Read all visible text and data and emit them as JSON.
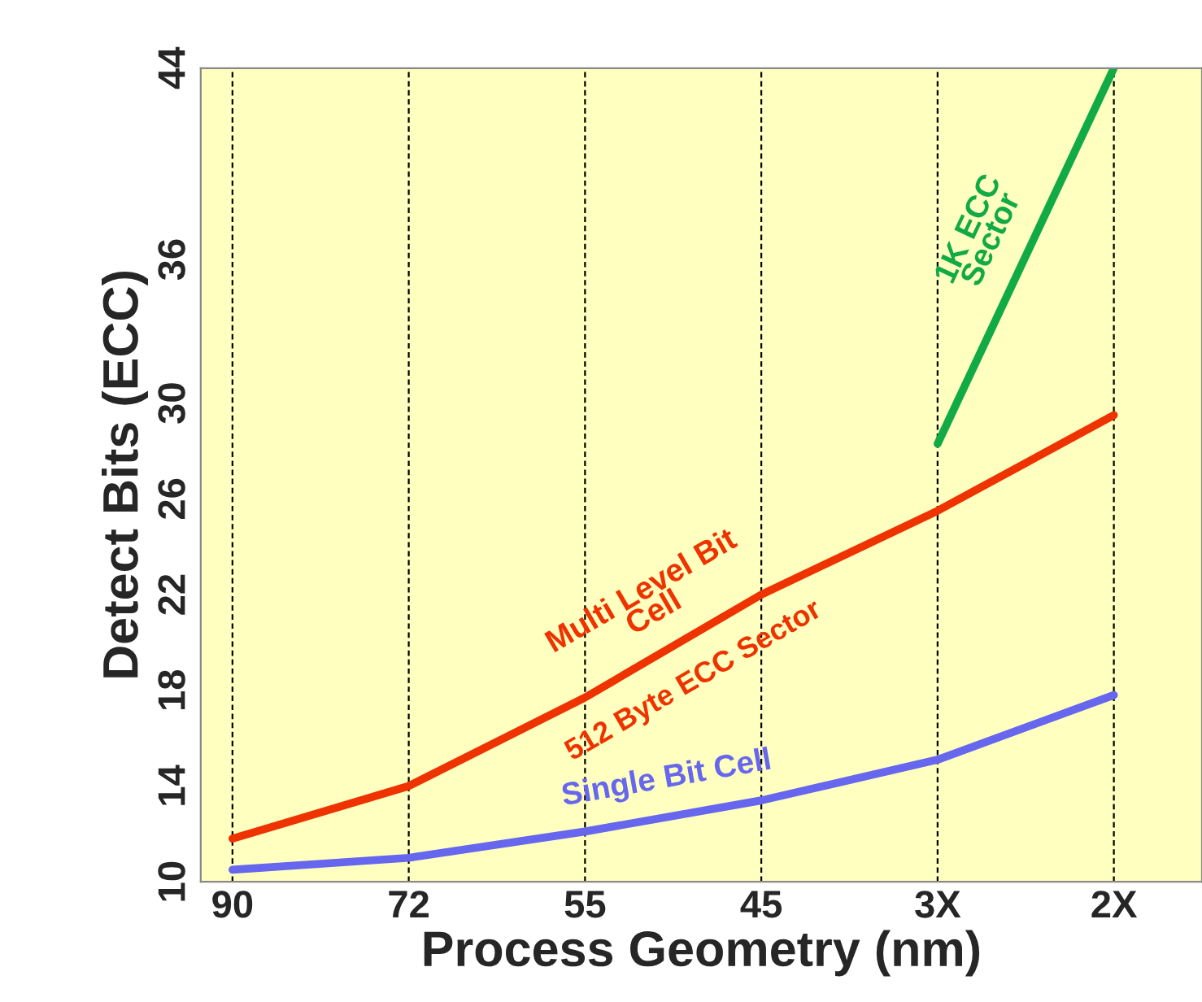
{
  "chart_data": {
    "type": "line",
    "xlabel": "Process Geometry (nm)",
    "ylabel": "Detect Bits (ECC)",
    "categories": [
      "90",
      "72",
      "55",
      "45",
      "3X",
      "2X"
    ],
    "ylim": [
      10,
      44
    ],
    "yticks": [
      10,
      14,
      18,
      22,
      26,
      30,
      36,
      44
    ],
    "grid": "x",
    "line_style": "solid",
    "marker": "none",
    "series": [
      {
        "name": "Single Bit Cell",
        "color": "#6666ee",
        "values": [
          10.5,
          11.0,
          12.1,
          13.4,
          15.1,
          17.8
        ]
      },
      {
        "name": "Multi Level Bit\nCell",
        "color": "#ee3300",
        "values": [
          11.8,
          14.0,
          17.7,
          22.0,
          25.5,
          29.5
        ]
      },
      {
        "name": "1K ECC\nSector",
        "color": "#11aa44",
        "values": [
          null,
          null,
          null,
          null,
          28.3,
          44.0
        ]
      }
    ],
    "annotations": [
      "512 Byte ECC Sector"
    ]
  }
}
